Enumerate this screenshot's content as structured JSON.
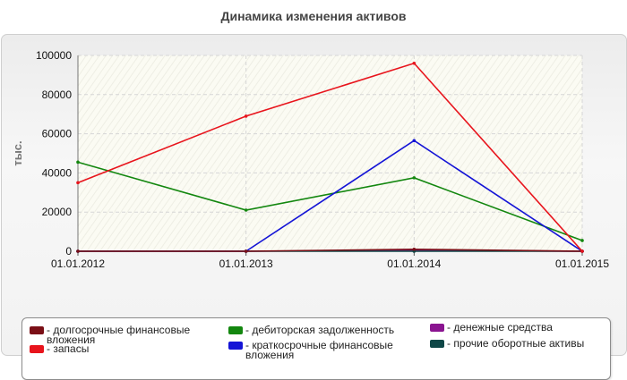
{
  "chart_data": {
    "type": "line",
    "title": "Динамика изменения активов",
    "ylabel": "тыс.",
    "xlabel": "",
    "x": [
      "01.01.2012",
      "01.01.2013",
      "01.01.2014",
      "01.01.2015"
    ],
    "ylim": [
      0,
      100000
    ],
    "yticks": [
      "0",
      "20000",
      "40000",
      "60000",
      "80000",
      "100000"
    ],
    "grid": true,
    "legend_position": "bottom",
    "series": [
      {
        "name": "долгосрочные финансовые вложения",
        "color": "#7a0f16",
        "values": [
          0,
          0,
          1000,
          0
        ]
      },
      {
        "name": "запасы",
        "color": "#e8141c",
        "values": [
          35000,
          69000,
          96000,
          0
        ]
      },
      {
        "name": "дебиторская задолженность",
        "color": "#13870f",
        "values": [
          45500,
          21000,
          37500,
          5500
        ]
      },
      {
        "name": "краткосрочные финансовые вложения",
        "color": "#1414d6",
        "values": [
          0,
          0,
          56500,
          0
        ]
      },
      {
        "name": "денежные средства",
        "color": "#8a1490",
        "values": [
          0,
          0,
          500,
          0
        ]
      },
      {
        "name": "прочие оборотные активы",
        "color": "#0e4747",
        "values": [
          0,
          0,
          0,
          0
        ]
      }
    ]
  }
}
